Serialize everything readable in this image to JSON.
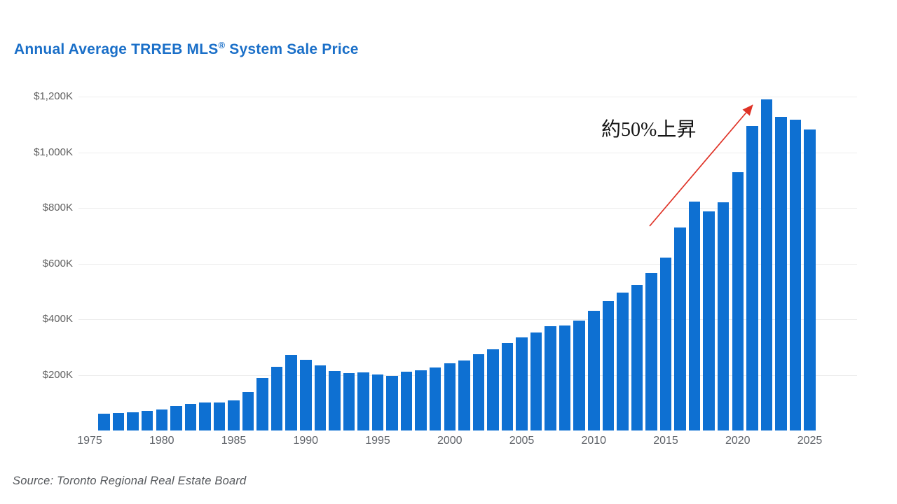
{
  "title": {
    "part1": "Annual Average TRREB MLS",
    "reg": "®",
    "part2": " System Sale Price"
  },
  "annotation": {
    "text": "約50%上昇"
  },
  "source": "Source: Toronto Regional Real Estate Board",
  "colors": {
    "bar": "#0E70D2",
    "title": "#1A6FC8",
    "axis_label": "#5E6268",
    "gridline": "#ededed",
    "arrow": "#DF3226",
    "annotation_text": "#151515"
  },
  "chart_data": {
    "type": "bar",
    "title": "Annual Average TRREB MLS® System Sale Price",
    "xlabel": "",
    "ylabel": "",
    "units": "thousands of dollars ($K)",
    "grid": "horizontal",
    "legend": "none",
    "ylim": [
      0,
      1200
    ],
    "x": [
      1976,
      1977,
      1978,
      1979,
      1980,
      1981,
      1982,
      1983,
      1984,
      1985,
      1986,
      1987,
      1988,
      1989,
      1990,
      1991,
      1992,
      1993,
      1994,
      1995,
      1996,
      1997,
      1998,
      1999,
      2000,
      2001,
      2002,
      2003,
      2004,
      2005,
      2006,
      2007,
      2008,
      2009,
      2010,
      2011,
      2012,
      2013,
      2014,
      2015,
      2016,
      2017,
      2018,
      2019,
      2020,
      2021,
      2022,
      2023,
      2024,
      2025
    ],
    "values": [
      61.4,
      64.6,
      67.3,
      70.8,
      75.7,
      90.2,
      95.5,
      101.6,
      102.3,
      109.1,
      138.9,
      189.1,
      229.6,
      273.7,
      255.0,
      234.3,
      215.0,
      206.5,
      208.9,
      203.0,
      198.2,
      211.3,
      216.8,
      228.4,
      243.3,
      251.5,
      275.2,
      293.1,
      315.2,
      335.9,
      351.9,
      376.2,
      379.3,
      395.5,
      431.3,
      465.0,
      497.1,
      523.0,
      566.6,
      622.2,
      729.9,
      822.7,
      787.3,
      819.3,
      929.7,
      1095.5,
      1190.0,
      1126.6,
      1117.6,
      1081.5
    ],
    "x_ticks": {
      "values": [
        1975,
        1980,
        1985,
        1990,
        1995,
        2000,
        2005,
        2010,
        2015,
        2020,
        2025
      ],
      "labels": [
        "1975",
        "1980",
        "1985",
        "1990",
        "1995",
        "2000",
        "2005",
        "2010",
        "2015",
        "2020",
        "2025"
      ]
    },
    "y_ticks": {
      "values": [
        200,
        400,
        600,
        800,
        1000,
        1200
      ],
      "labels": [
        "$200K",
        "$400K",
        "$600K",
        "$800K",
        "$1,000K",
        "$1,200K"
      ]
    },
    "annotation": {
      "text": "約50%上昇",
      "arrow_from_year_level": "≈ $800K (2017–2019 bars)",
      "arrow_to": "2022 peak bar (≈ $1,190K)"
    }
  }
}
